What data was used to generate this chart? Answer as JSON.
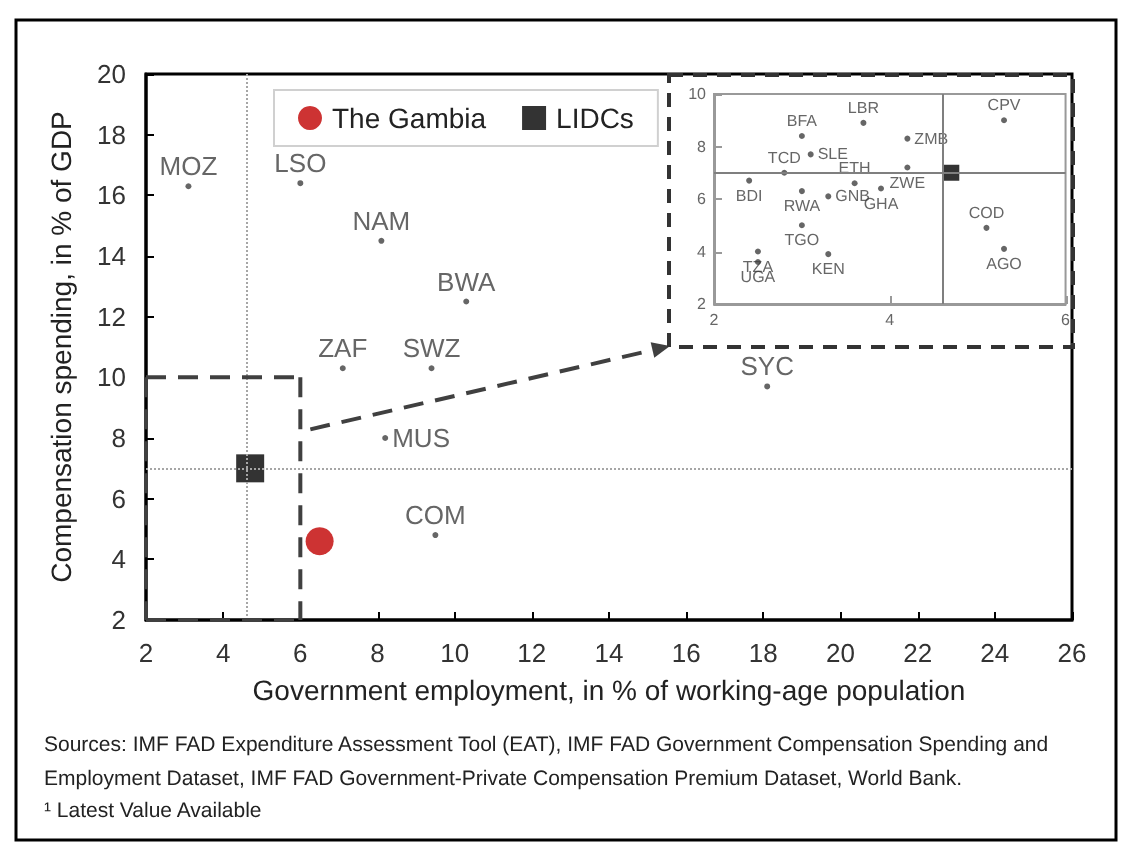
{
  "chart_data": [
    {
      "type": "scatter",
      "xlabel": "Government employment, in % of working-age population",
      "ylabel": "Compensation spending, in % of GDP",
      "annotations": [
        "Sources: IMF FAD Expenditure Assessment Tool (EAT), IMF FAD Government Compensation Spending and Employment Dataset, IMF FAD Government-Private Compensation Premium Dataset, World Bank.",
        "¹ Latest Value Available"
      ],
      "xlim": [
        2,
        26
      ],
      "xticks": [
        2,
        4,
        6,
        8,
        10,
        12,
        14,
        16,
        18,
        20,
        22,
        24,
        26
      ],
      "ylim": [
        2,
        20
      ],
      "yticks": [
        2,
        4,
        6,
        8,
        10,
        12,
        14,
        16,
        18,
        20
      ],
      "grid": false,
      "legend": "top left",
      "ref_lines": [
        {
          "axis": "x",
          "value": 4.6,
          "color": "#a6a6a6",
          "line_style": "dotted"
        },
        {
          "axis": "y",
          "value": 7,
          "color": "#a6a6a6",
          "line_style": "dotted"
        }
      ],
      "series": [
        {
          "color": "#404040",
          "marker": "circle",
          "x": [
            3.1,
            6.0,
            8.1,
            10.3,
            7.1,
            9.4,
            8.2,
            9.5,
            18.1
          ],
          "values": [
            16.3,
            16.4,
            14.5,
            12.5,
            10.3,
            10.3,
            8.0,
            4.8,
            9.7
          ],
          "value_labels": [
            "MOZ",
            "LSO",
            "NAM",
            "BWA",
            "ZAF",
            "SWZ",
            "MUS",
            "COM",
            "SYC"
          ]
        },
        {
          "name": "The Gambia",
          "color": "#c00000",
          "marker": "circle",
          "x": [
            6.5
          ],
          "values": [
            4.6
          ]
        },
        {
          "name": "LIDCs",
          "color": "#000000",
          "marker": "square",
          "x": [
            4.7
          ],
          "values": [
            7.0
          ]
        }
      ]
    },
    {
      "type": "scatter",
      "xlim": [
        2,
        6
      ],
      "xticks": [
        2,
        4,
        6
      ],
      "ylim": [
        2,
        10
      ],
      "yticks": [
        2,
        4,
        6,
        8,
        10
      ],
      "grid": false,
      "ref_lines": [
        {
          "axis": "x",
          "value": 4.6,
          "color": "#7f7f7f",
          "line_style": "solid"
        },
        {
          "axis": "y",
          "value": 7,
          "color": "#7f7f7f",
          "line_style": "solid"
        }
      ],
      "series": [
        {
          "color": "#404040",
          "marker": "circle",
          "x": [
            3.0,
            3.1,
            3.7,
            4.2,
            5.3,
            2.4,
            2.8,
            4.2,
            3.0,
            3.3,
            3.6,
            3.9,
            3.0,
            2.5,
            2.5,
            3.3,
            5.1,
            5.3
          ],
          "values": [
            8.4,
            7.7,
            8.9,
            8.3,
            9.0,
            6.7,
            7.0,
            7.2,
            6.3,
            6.1,
            6.6,
            6.4,
            5.0,
            4.0,
            3.6,
            3.9,
            4.9,
            4.1
          ],
          "value_labels": [
            "BFA",
            "SLE",
            "LBR",
            "ZMB",
            "CPV",
            "BDI",
            "TCD",
            "ZWE",
            "RWA",
            "GNB",
            "ETH",
            "GHA",
            "TGO",
            "TZA",
            "UGA",
            "KEN",
            "COD",
            "AGO"
          ]
        },
        {
          "color": "#000000",
          "marker": "square",
          "x": [
            4.7
          ],
          "values": [
            7.0
          ]
        }
      ]
    }
  ]
}
